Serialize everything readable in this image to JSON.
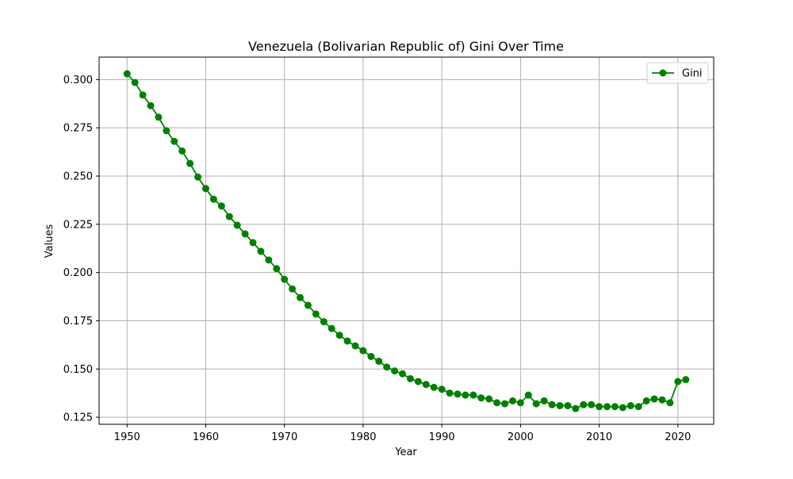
{
  "chart_data": {
    "type": "line",
    "title": "Venezuela (Bolivarian Republic of) Gini Over Time",
    "xlabel": "Year",
    "ylabel": "Values",
    "xlim": [
      1946.45,
      2024.55
    ],
    "ylim": [
      0.12135,
      0.31165
    ],
    "x_ticks": [
      1950,
      1960,
      1970,
      1980,
      1990,
      2000,
      2010,
      2020
    ],
    "y_ticks": [
      0.125,
      0.15,
      0.175,
      0.2,
      0.225,
      0.25,
      0.275,
      0.3
    ],
    "y_tick_labels": [
      "0.125",
      "0.150",
      "0.175",
      "0.200",
      "0.225",
      "0.250",
      "0.275",
      "0.300"
    ],
    "grid": true,
    "legend_position": "top-right",
    "series": [
      {
        "name": "Gini",
        "color": "#008000",
        "marker": "circle",
        "x": [
          1950,
          1951,
          1952,
          1953,
          1954,
          1955,
          1956,
          1957,
          1958,
          1959,
          1960,
          1961,
          1962,
          1963,
          1964,
          1965,
          1966,
          1967,
          1968,
          1969,
          1970,
          1971,
          1972,
          1973,
          1974,
          1975,
          1976,
          1977,
          1978,
          1979,
          1980,
          1981,
          1982,
          1983,
          1984,
          1985,
          1986,
          1987,
          1988,
          1989,
          1990,
          1991,
          1992,
          1993,
          1994,
          1995,
          1996,
          1997,
          1998,
          1999,
          2000,
          2001,
          2002,
          2003,
          2004,
          2005,
          2006,
          2007,
          2008,
          2009,
          2010,
          2011,
          2012,
          2013,
          2014,
          2015,
          2016,
          2017,
          2018,
          2019,
          2020,
          2021
        ],
        "values": [
          0.303,
          0.2985,
          0.292,
          0.2865,
          0.2805,
          0.2735,
          0.268,
          0.263,
          0.2565,
          0.2495,
          0.2435,
          0.238,
          0.2345,
          0.229,
          0.2245,
          0.22,
          0.2155,
          0.211,
          0.2065,
          0.202,
          0.1965,
          0.1915,
          0.187,
          0.183,
          0.1785,
          0.1745,
          0.171,
          0.1675,
          0.1645,
          0.162,
          0.1595,
          0.1565,
          0.154,
          0.151,
          0.149,
          0.1475,
          0.145,
          0.1435,
          0.142,
          0.1405,
          0.1395,
          0.1375,
          0.137,
          0.1365,
          0.1365,
          0.135,
          0.1345,
          0.1325,
          0.132,
          0.1335,
          0.1325,
          0.1365,
          0.132,
          0.1335,
          0.1315,
          0.131,
          0.131,
          0.1295,
          0.1315,
          0.1315,
          0.1305,
          0.1305,
          0.1305,
          0.13,
          0.131,
          0.1305,
          0.1335,
          0.1345,
          0.134,
          0.1325,
          0.1435,
          0.1445
        ]
      }
    ]
  }
}
